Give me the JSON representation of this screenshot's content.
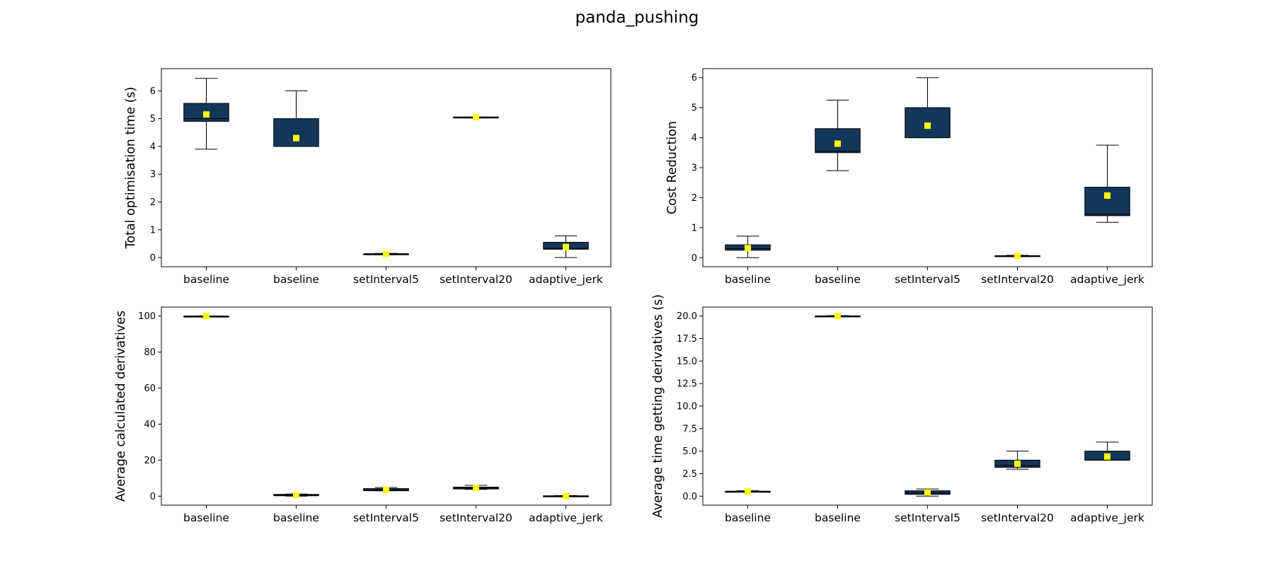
{
  "figure": {
    "title": "panda_pushing"
  },
  "style": {
    "box_fill": "#12375a",
    "mean_marker": "#ffff00",
    "line": "#000000"
  },
  "chart_data": [
    {
      "type": "box",
      "title": "",
      "xlabel": "",
      "ylabel": "Total optimisation time (s)",
      "categories": [
        "baseline",
        "baseline",
        "setInterval5",
        "setInterval20",
        "adaptive_jerk"
      ],
      "ylim": [
        -0.33,
        6.8
      ],
      "yticks": [
        0,
        1,
        2,
        3,
        4,
        5,
        6
      ],
      "boxes": [
        {
          "whisker_low": 3.9,
          "q1": 4.9,
          "median": 5.0,
          "q3": 5.55,
          "whisker_high": 6.45,
          "mean": 5.15
        },
        {
          "whisker_low": 4.0,
          "q1": 4.0,
          "median": 4.0,
          "q3": 5.0,
          "whisker_high": 6.0,
          "mean": 4.3
        },
        {
          "whisker_low": 0.1,
          "q1": 0.1,
          "median": 0.12,
          "q3": 0.14,
          "whisker_high": 0.15,
          "mean": 0.13
        },
        {
          "whisker_low": 5.04,
          "q1": 5.04,
          "median": 5.05,
          "q3": 5.06,
          "whisker_high": 5.06,
          "mean": 5.05
        },
        {
          "whisker_low": 0.0,
          "q1": 0.3,
          "median": 0.33,
          "q3": 0.55,
          "whisker_high": 0.78,
          "mean": 0.38
        }
      ]
    },
    {
      "type": "box",
      "title": "",
      "xlabel": "",
      "ylabel": "Cost Reduction",
      "categories": [
        "baseline",
        "baseline",
        "setInterval5",
        "setInterval20",
        "adaptive_jerk"
      ],
      "ylim": [
        -0.3,
        6.3
      ],
      "yticks": [
        0,
        1,
        2,
        3,
        4,
        5,
        6
      ],
      "boxes": [
        {
          "whisker_low": 0.0,
          "q1": 0.25,
          "median": 0.3,
          "q3": 0.43,
          "whisker_high": 0.72,
          "mean": 0.32
        },
        {
          "whisker_low": 2.9,
          "q1": 3.5,
          "median": 3.55,
          "q3": 4.3,
          "whisker_high": 5.25,
          "mean": 3.8
        },
        {
          "whisker_low": 4.0,
          "q1": 4.0,
          "median": 4.0,
          "q3": 5.0,
          "whisker_high": 6.0,
          "mean": 4.4
        },
        {
          "whisker_low": 0.04,
          "q1": 0.05,
          "median": 0.06,
          "q3": 0.07,
          "whisker_high": 0.08,
          "mean": 0.06
        },
        {
          "whisker_low": 1.18,
          "q1": 1.4,
          "median": 1.45,
          "q3": 2.35,
          "whisker_high": 3.75,
          "mean": 2.07
        }
      ]
    },
    {
      "type": "box",
      "title": "",
      "xlabel": "",
      "ylabel": "Average calculated derivatives",
      "categories": [
        "baseline",
        "baseline",
        "setInterval5",
        "setInterval20",
        "adaptive_jerk"
      ],
      "ylim": [
        -5,
        105
      ],
      "yticks": [
        0,
        20,
        40,
        60,
        80,
        100
      ],
      "boxes": [
        {
          "whisker_low": 100,
          "q1": 100,
          "median": 100,
          "q3": 100,
          "whisker_high": 100,
          "mean": 100
        },
        {
          "whisker_low": 0.0,
          "q1": 0.2,
          "median": 0.5,
          "q3": 1.0,
          "whisker_high": 1.2,
          "mean": 0.6
        },
        {
          "whisker_low": 3.0,
          "q1": 3.0,
          "median": 3.5,
          "q3": 4.2,
          "whisker_high": 4.8,
          "mean": 3.6
        },
        {
          "whisker_low": 3.8,
          "q1": 4.0,
          "median": 4.5,
          "q3": 5.0,
          "whisker_high": 6.0,
          "mean": 4.7
        },
        {
          "whisker_low": -0.3,
          "q1": -0.2,
          "median": 0.0,
          "q3": 0.2,
          "whisker_high": 0.3,
          "mean": 0.0
        }
      ]
    },
    {
      "type": "box",
      "title": "",
      "xlabel": "",
      "ylabel": "Average time getting derivatives (s)",
      "categories": [
        "baseline",
        "baseline",
        "setInterval5",
        "setInterval20",
        "adaptive_jerk"
      ],
      "ylim": [
        -1.0,
        21.0
      ],
      "yticks": [
        0.0,
        2.5,
        5.0,
        7.5,
        10.0,
        12.5,
        15.0,
        17.5,
        20.0
      ],
      "boxes": [
        {
          "whisker_low": 0.45,
          "q1": 0.48,
          "median": 0.5,
          "q3": 0.55,
          "whisker_high": 0.6,
          "mean": 0.52
        },
        {
          "whisker_low": 19.95,
          "q1": 19.98,
          "median": 20.0,
          "q3": 20.02,
          "whisker_high": 20.05,
          "mean": 20.0
        },
        {
          "whisker_low": 0.0,
          "q1": 0.2,
          "median": 0.35,
          "q3": 0.6,
          "whisker_high": 0.8,
          "mean": 0.42
        },
        {
          "whisker_low": 3.0,
          "q1": 3.2,
          "median": 3.4,
          "q3": 4.0,
          "whisker_high": 5.0,
          "mean": 3.6
        },
        {
          "whisker_low": 4.0,
          "q1": 4.0,
          "median": 4.0,
          "q3": 5.0,
          "whisker_high": 6.0,
          "mean": 4.4
        }
      ]
    }
  ]
}
